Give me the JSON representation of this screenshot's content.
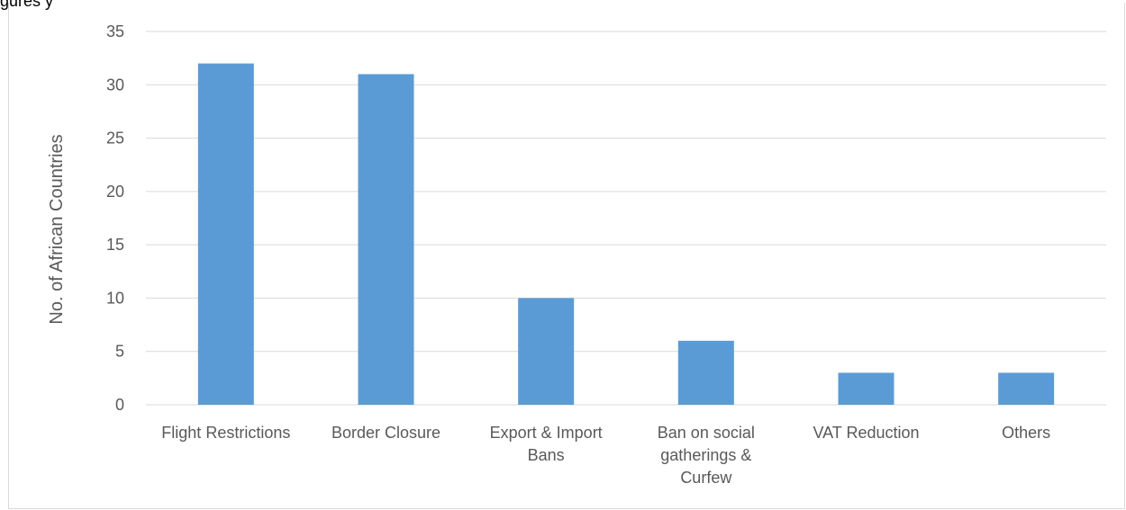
{
  "caption": "gures       y    ",
  "chart_data": {
    "type": "bar",
    "title": "",
    "xlabel": "",
    "ylabel": "No. of African Countries",
    "ylim": [
      0,
      35
    ],
    "yticks": [
      0,
      5,
      10,
      15,
      20,
      25,
      30,
      35
    ],
    "grid": true,
    "legend": "none",
    "categories": [
      [
        "Flight Restrictions"
      ],
      [
        "Border Closure"
      ],
      [
        "Export & Import",
        "Bans"
      ],
      [
        "Ban on social",
        "gatherings &",
        "Curfew"
      ],
      [
        "VAT Reduction"
      ],
      [
        "Others"
      ]
    ],
    "values": [
      32,
      31,
      10,
      6,
      3,
      3
    ],
    "bar_color": "#5b9bd5",
    "grid_color": "#d9d9d9"
  }
}
